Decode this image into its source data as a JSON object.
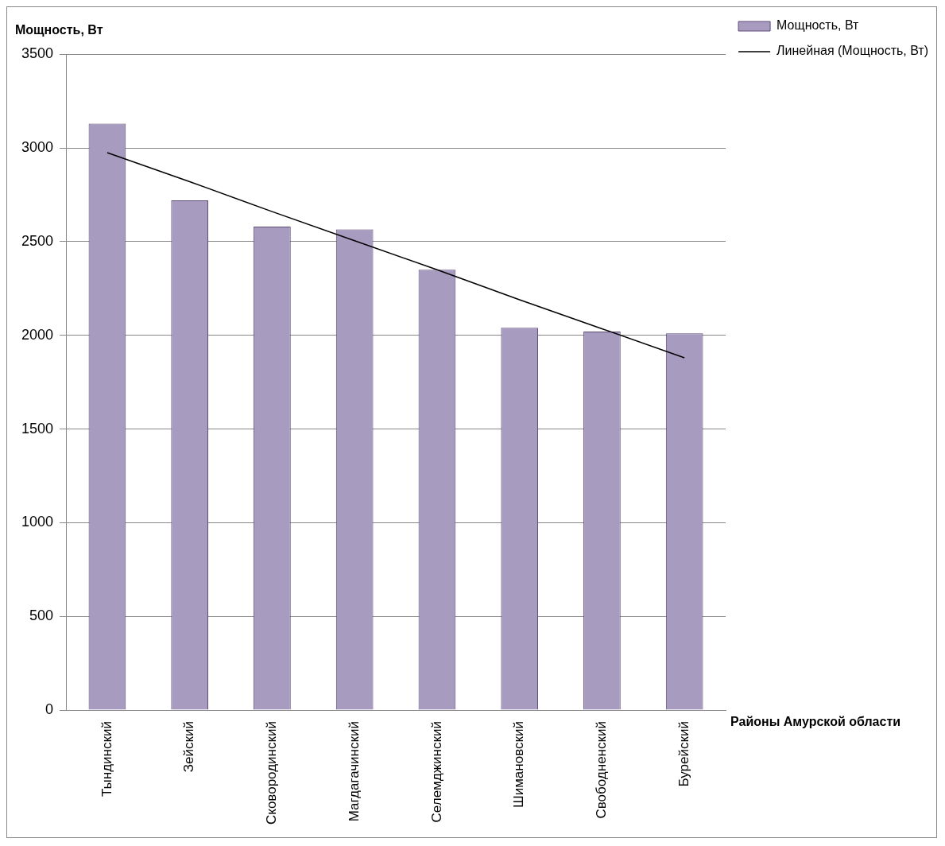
{
  "chart_data": {
    "type": "bar",
    "ylabel": "Мощность, Вт",
    "xlabel": "Районы Амурской области",
    "categories": [
      "Тындинский",
      "Зейский",
      "Сковородинский",
      "Магдагачинский",
      "Селемджинский",
      "Шимановский",
      "Свободненский",
      "Бурейский"
    ],
    "series": [
      {
        "name": "Мощность, Вт",
        "color": "#a79bc0",
        "values": [
          3130,
          2720,
          2580,
          2565,
          2350,
          2040,
          2020,
          2010
        ]
      },
      {
        "name": "Линейная (Мощность, Вт)",
        "type": "line",
        "color": "#000000",
        "values": [
          2975,
          2820,
          2660,
          2505,
          2350,
          2190,
          2035,
          1880
        ]
      }
    ],
    "ylim": [
      0,
      3500
    ],
    "yticks": [
      0,
      500,
      1000,
      1500,
      2000,
      2500,
      3000,
      3500
    ],
    "grid": "y",
    "legend": "top right",
    "marker": "none"
  }
}
